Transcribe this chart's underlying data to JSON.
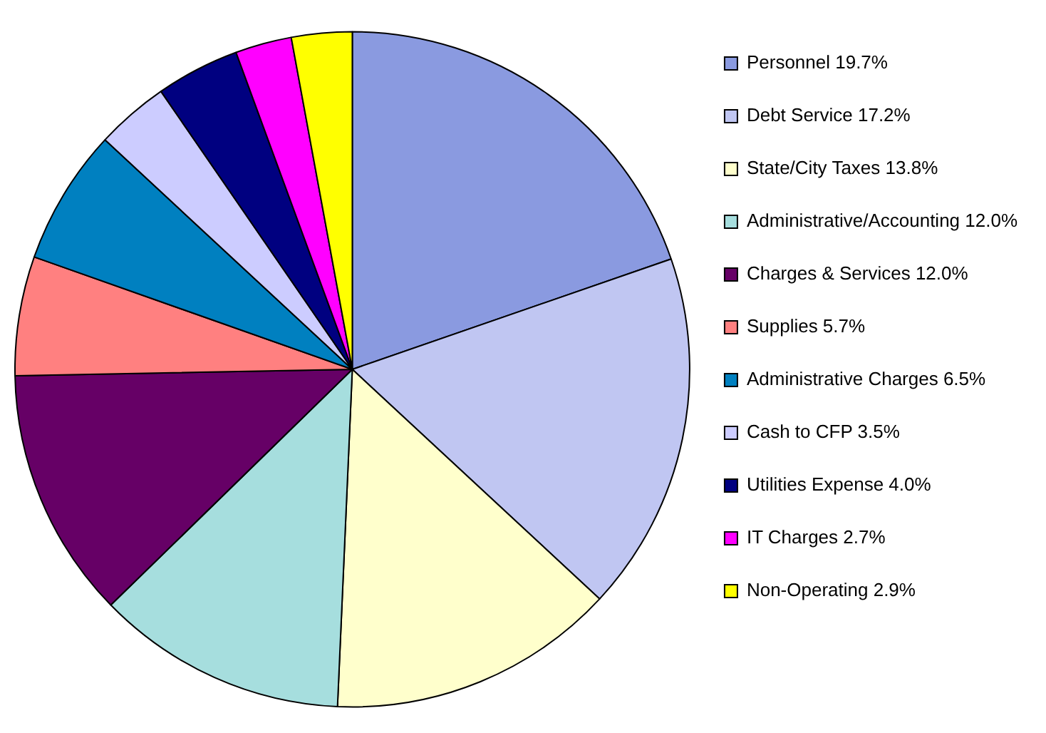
{
  "chart_data": {
    "type": "pie",
    "categories": [
      "Personnel 19.7%",
      "Debt Service 17.2%",
      "State/City Taxes 13.8%",
      "Administrative/Accounting 12.0%",
      "Charges & Services 12.0%",
      "Supplies 5.7%",
      "Administrative Charges 6.5%",
      "Cash to CFP 3.5%",
      "Utilities Expense 4.0%",
      "IT Charges 2.7%",
      "Non-Operating 2.9%"
    ],
    "values": [
      19.7,
      17.2,
      13.8,
      12.0,
      12.0,
      5.7,
      6.5,
      3.5,
      4.0,
      2.7,
      2.9
    ],
    "colors": [
      "#8a9ae0",
      "#c0c6f2",
      "#ffffcc",
      "#a6dede",
      "#660066",
      "#ff8080",
      "#0080c0",
      "#ccccff",
      "#000080",
      "#ff00ff",
      "#ffff00"
    ],
    "legend": "right"
  }
}
